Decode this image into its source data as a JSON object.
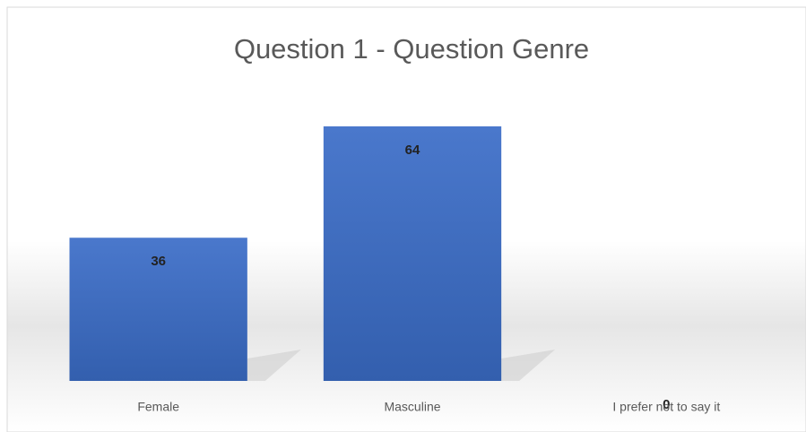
{
  "chart_data": {
    "type": "bar",
    "title": "Question 1 - Question Genre",
    "categories": [
      "Female",
      "Masculine",
      "I prefer not to say it"
    ],
    "values": [
      36,
      64,
      0
    ],
    "color": "#4472c4"
  }
}
